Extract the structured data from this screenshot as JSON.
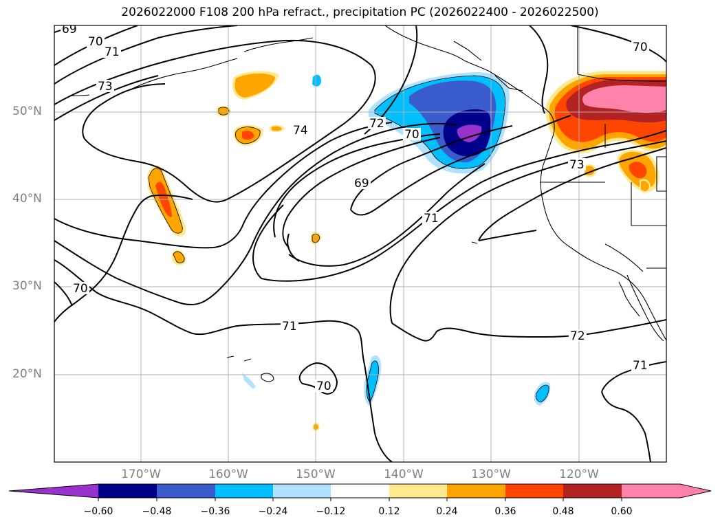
{
  "title": "2026022000 F108 200 hPa refract., precipitation PC (2026022400 - 2026022500)",
  "axes": {
    "lat_labels": [
      "50°N",
      "40°N",
      "30°N",
      "20°N"
    ],
    "lon_labels": [
      "170°W",
      "160°W",
      "150°W",
      "140°W",
      "130°W",
      "120°W"
    ]
  },
  "contour_labels": [
    "69",
    "70",
    "71",
    "73",
    "74",
    "72",
    "70",
    "69",
    "71",
    "70",
    "73",
    "70",
    "71",
    "70",
    "72",
    "71"
  ],
  "colorbar": {
    "ticks": [
      "−0.60",
      "−0.48",
      "−0.36",
      "−0.24",
      "−0.12",
      "0.12",
      "0.24",
      "0.36",
      "0.48",
      "0.60"
    ],
    "colors": [
      "#9932CC",
      "#00008B",
      "#3A5CCC",
      "#00BFFF",
      "#B0E2FF",
      "#FFFFFF",
      "#FFE98F",
      "#FFA500",
      "#FF4500",
      "#B22222",
      "#FF82AB",
      "#FF82AB"
    ]
  }
}
